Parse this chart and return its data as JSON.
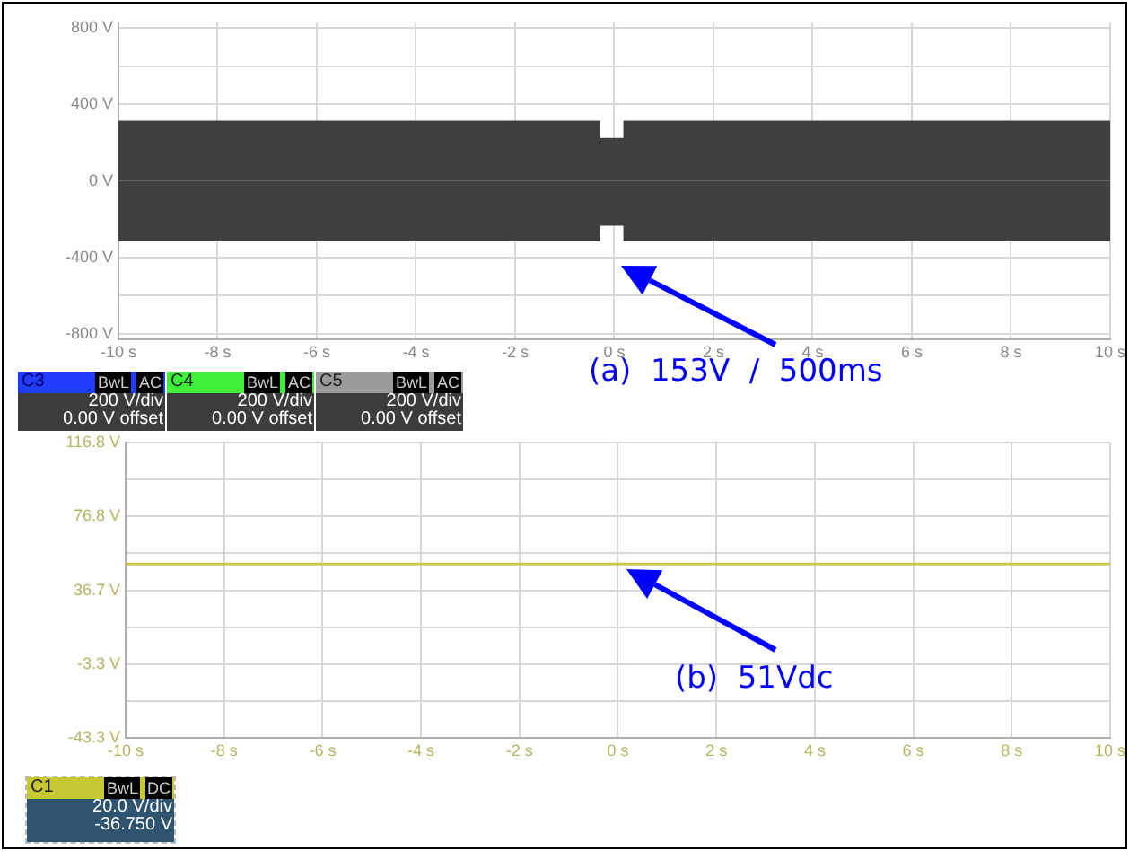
{
  "chart_data": [
    {
      "type": "area",
      "x": [
        -10,
        -0.3,
        -0.3,
        0.2,
        0.2,
        10
      ],
      "series": [
        {
          "color": "#404040",
          "values": [
            310,
            310,
            220,
            220,
            310,
            310
          ]
        },
        {
          "color": "#404040",
          "values": [
            -310,
            -310,
            -230,
            -230,
            -310,
            -310
          ]
        }
      ],
      "xlim": [
        -10,
        10
      ],
      "ylim": [
        -830,
        830
      ],
      "xticks": [
        {
          "value": -10,
          "label": "-10 s"
        },
        {
          "value": -8,
          "label": "-8 s"
        },
        {
          "value": -6,
          "label": "-6 s"
        },
        {
          "value": -4,
          "label": "-4 s"
        },
        {
          "value": -2,
          "label": "-2 s"
        },
        {
          "value": 0,
          "label": "0 s"
        },
        {
          "value": 2,
          "label": "2 s"
        },
        {
          "value": 4,
          "label": "4 s"
        },
        {
          "value": 6,
          "label": "6 s"
        },
        {
          "value": 8,
          "label": "8 s"
        },
        {
          "value": 10,
          "label": "10 s"
        }
      ],
      "yticks": [
        {
          "value": -800,
          "label": "-800 V"
        },
        {
          "value": -600,
          "label": null
        },
        {
          "value": -400,
          "label": "-400 V"
        },
        {
          "value": 0,
          "label": "0 V"
        },
        {
          "value": 400,
          "label": "400 V"
        },
        {
          "value": 600,
          "label": null
        },
        {
          "value": 800,
          "label": "800 V"
        }
      ],
      "grid": true,
      "legend": false,
      "annotations": [
        "(a)  153V  /  500ms",
        "C3",
        "BwL",
        "AC",
        "200 V/div",
        "0.00 V offset",
        "C4",
        "BwL",
        "AC",
        "200 V/div",
        "0.00 V offset",
        "C5",
        "BwL",
        "AC",
        "200 V/div",
        "0.00 V offset"
      ]
    },
    {
      "type": "line",
      "x": [
        -10,
        10
      ],
      "values": [
        51,
        51
      ],
      "color": "#c8c850",
      "xlim": [
        -10,
        10
      ],
      "ylim": [
        -43.3,
        116.8
      ],
      "xticks": [
        {
          "value": -10,
          "label": "-10 s"
        },
        {
          "value": -8,
          "label": "-8 s"
        },
        {
          "value": -6,
          "label": "-6 s"
        },
        {
          "value": -4,
          "label": "-4 s"
        },
        {
          "value": -2,
          "label": "-2 s"
        },
        {
          "value": 0,
          "label": "0 s"
        },
        {
          "value": 2,
          "label": "2 s"
        },
        {
          "value": 4,
          "label": "4 s"
        },
        {
          "value": 6,
          "label": "6 s"
        },
        {
          "value": 8,
          "label": "8 s"
        },
        {
          "value": 10,
          "label": "10 s"
        }
      ],
      "yticks": [
        {
          "value": -43.3,
          "label": "-43.3 V"
        },
        {
          "value": -23.3,
          "label": null
        },
        {
          "value": -3.3,
          "label": "-3.3 V"
        },
        {
          "value": 16.7,
          "label": null
        },
        {
          "value": 36.7,
          "label": "36.7 V"
        },
        {
          "value": 56.8,
          "label": null
        },
        {
          "value": 76.8,
          "label": "76.8 V"
        },
        {
          "value": 96.8,
          "label": null
        },
        {
          "value": 116.8,
          "label": "116.8 V"
        }
      ],
      "grid": true,
      "legend": false,
      "marker": "none",
      "line_style": "solid",
      "annotations": [
        "(b)  51Vdc",
        "C1",
        "BwL",
        "DC",
        "20.0 V/div",
        "-36.750 V"
      ]
    }
  ]
}
